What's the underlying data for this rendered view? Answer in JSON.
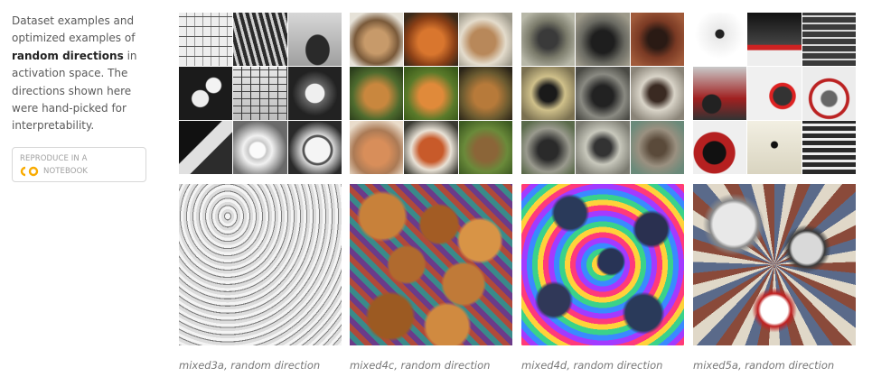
{
  "sidebar": {
    "text_before": "Dataset examples and optimized examples of",
    "text_bold": "random directions",
    "text_after": "in activation space. The directions shown here were hand-picked for interpretability.",
    "button_line1": "REPRODUCE IN A",
    "button_line2": "NOTEBOOK",
    "button_logo": "colab-logo-icon"
  },
  "columns": [
    {
      "caption": "mixed3a, random direction"
    },
    {
      "caption": "mixed4c, random direction"
    },
    {
      "caption": "mixed4d, random direction"
    },
    {
      "caption": "mixed5a, random direction"
    }
  ],
  "colors": {
    "colab_orange": "#F9AB00",
    "caption_gray": "#777777"
  }
}
